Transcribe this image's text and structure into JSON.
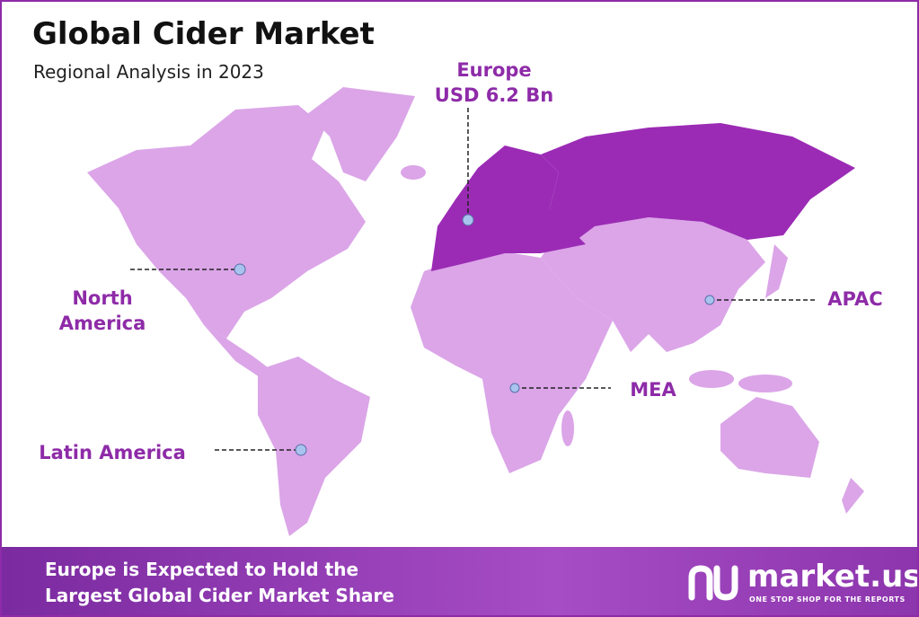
{
  "header": {
    "title": "Global Cider Market",
    "subtitle": "Regional Analysis in 2023"
  },
  "regions": [
    {
      "name": "Europe",
      "value": "USD 6.2 Bn"
    },
    {
      "name": "North America"
    },
    {
      "name": "APAC"
    },
    {
      "name": "MEA"
    },
    {
      "name": "Latin America"
    }
  ],
  "footer": {
    "lines": [
      "Europe is Expected to Hold the",
      "Largest Global Cider Market Share"
    ]
  },
  "logo": {
    "name": "market.us",
    "tagline": "ONE STOP SHOP FOR THE REPORTS"
  }
}
